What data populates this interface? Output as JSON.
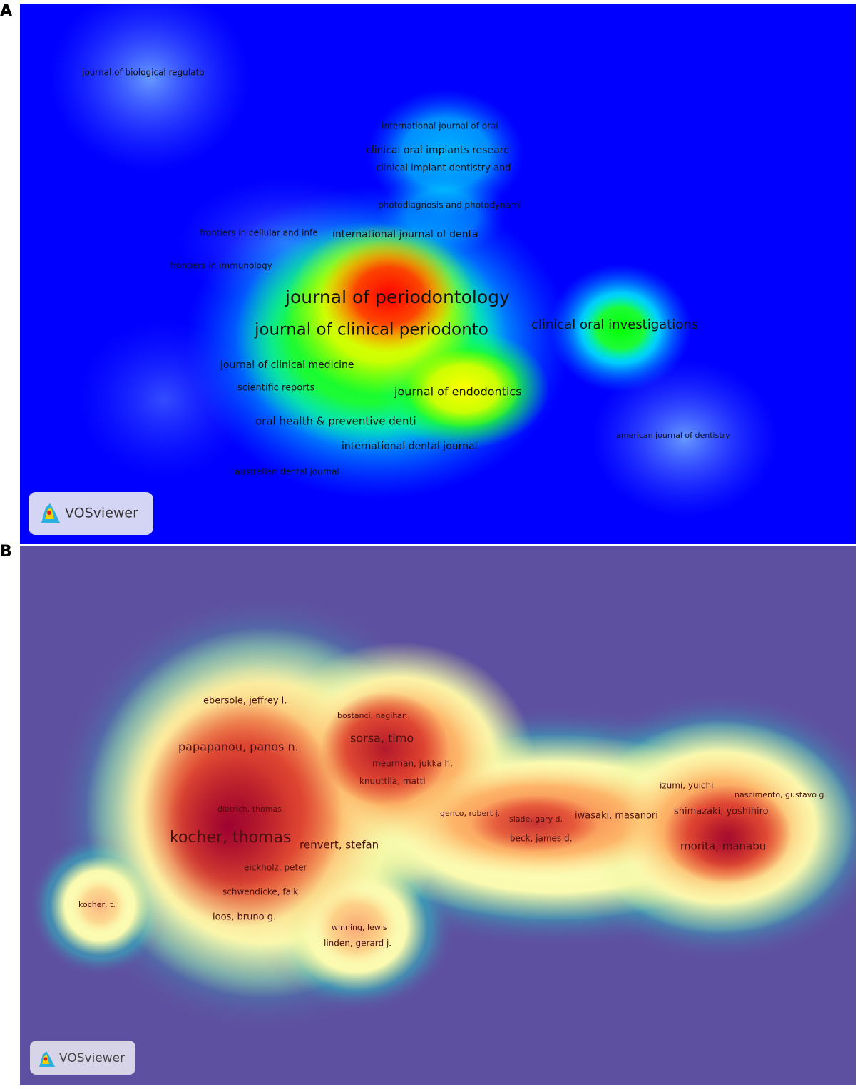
{
  "panel_a": {
    "letter": "A",
    "logo": "VOSviewer",
    "labels": [
      "journal of biological regulato",
      "international journal of oral",
      "clinical oral implants researc",
      "clinical implant dentistry and",
      "photodiagnosis and photodynami",
      "frontiers in cellular and infe",
      "international journal of denta",
      "frontiers in immunology",
      "journal of periodontology",
      "journal of clinical periodonto",
      "clinical oral investigations",
      "journal of clinical medicine",
      "scientific reports",
      "journal of endodontics",
      "oral health & preventive denti",
      "international dental journal",
      "american journal of dentistry",
      "australian dental journal"
    ]
  },
  "panel_b": {
    "letter": "B",
    "logo": "VOSviewer",
    "labels": [
      "ebersole, jeffrey l.",
      "bostanci, nagihan",
      "sorsa, timo",
      "papapanou, panos n.",
      "meurman, jukka h.",
      "knuuttila, matti",
      "izumi, yuichi",
      "nascimento, gustavo g.",
      "dietrich, thomas",
      "genco, robert j.",
      "slade, gary d.",
      "iwasaki, masanori",
      "shimazaki, yoshihiro",
      "kocher, thomas",
      "renvert, stefan",
      "beck, james d.",
      "morita, manabu",
      "eickholz, peter",
      "schwendicke, falk",
      "kocher, t.",
      "loos, bruno g.",
      "winning, lewis",
      "linden, gerard j."
    ]
  }
}
